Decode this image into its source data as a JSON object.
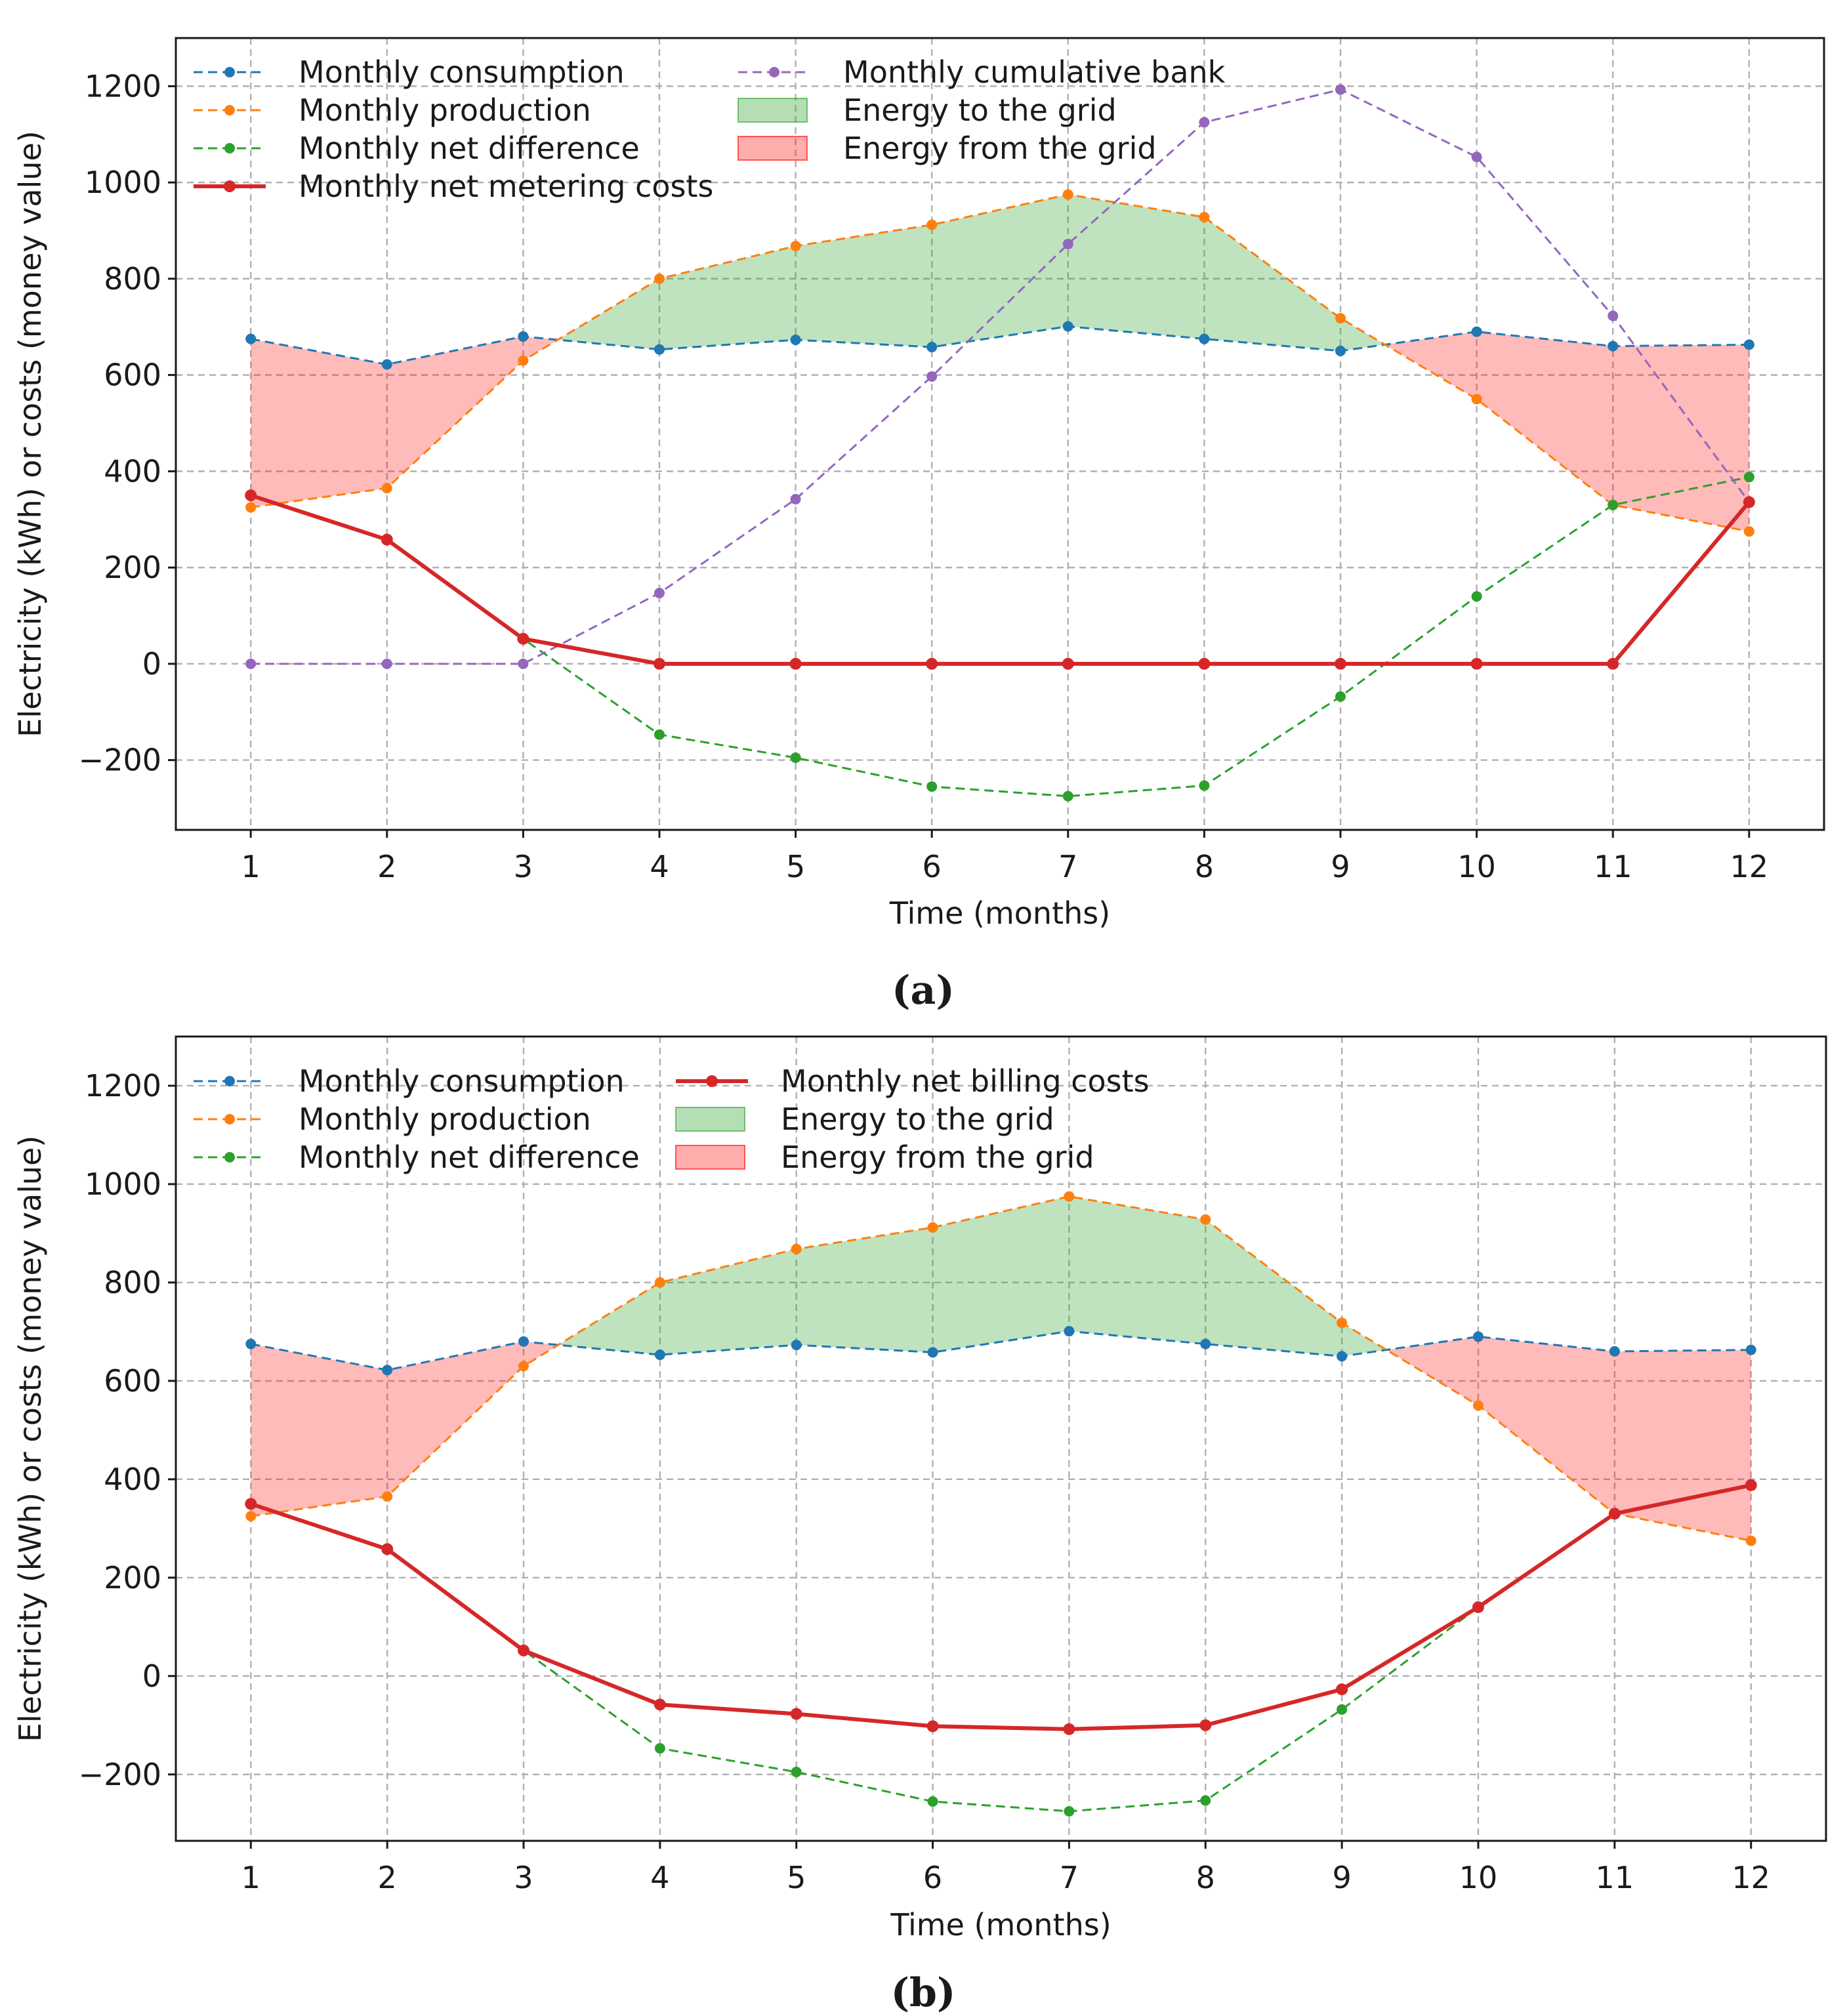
{
  "chart_data": [
    {
      "type": "line",
      "caption": "(a)",
      "xlabel": "Time (months)",
      "ylabel": "Electricity (kWh) or costs (money value)",
      "xlim": [
        0.45,
        12.55
      ],
      "ylim": [
        -345,
        1300
      ],
      "x": [
        1,
        2,
        3,
        4,
        5,
        6,
        7,
        8,
        9,
        10,
        11,
        12
      ],
      "x_ticks": [
        "1",
        "2",
        "3",
        "4",
        "5",
        "6",
        "7",
        "8",
        "9",
        "10",
        "11",
        "12"
      ],
      "y_ticks": [
        -200,
        0,
        200,
        400,
        600,
        800,
        1000,
        1200
      ],
      "y_tick_labels": [
        "−200",
        "0",
        "200",
        "400",
        "600",
        "800",
        "1000",
        "1200"
      ],
      "grid": true,
      "legend_position": "top-left",
      "series": [
        {
          "name": "Monthly consumption",
          "key": "consumption",
          "color": "#1f77b4",
          "style": "dashed-marker",
          "values": [
            675,
            622,
            680,
            653,
            673,
            658,
            701,
            675,
            650,
            690,
            660,
            663
          ]
        },
        {
          "name": "Monthly production",
          "key": "production",
          "color": "#ff7f0e",
          "style": "dashed-marker",
          "values": [
            325,
            365,
            630,
            800,
            868,
            912,
            975,
            928,
            718,
            550,
            330,
            275
          ]
        },
        {
          "name": "Monthly net difference",
          "key": "net",
          "color": "#2ca02c",
          "style": "dashed-marker",
          "values": [
            350,
            258,
            52,
            -147,
            -195,
            -255,
            -275,
            -253,
            -68,
            140,
            330,
            388
          ]
        },
        {
          "name": "Monthly net metering costs",
          "key": "cost",
          "color": "#d62728",
          "style": "solid-marker",
          "values": [
            350,
            258,
            52,
            0,
            0,
            0,
            0,
            0,
            0,
            0,
            0,
            336
          ]
        },
        {
          "name": "Monthly cumulative bank",
          "key": "bank",
          "color": "#9467bd",
          "style": "dashed-marker",
          "values": [
            0,
            0,
            0,
            147,
            342,
            597,
            872,
            1125,
            1193,
            1053,
            723,
            336
          ]
        }
      ],
      "fills": [
        {
          "name": "Energy to the grid",
          "color": "#2ca02c",
          "opacity": 0.3,
          "condition": "production > consumption"
        },
        {
          "name": "Energy from the grid",
          "color": "#ff0000",
          "opacity": 0.27,
          "condition": "consumption > production"
        }
      ]
    },
    {
      "type": "line",
      "caption": "(b)",
      "xlabel": "Time (months)",
      "ylabel": "Electricity (kWh) or costs (money value)",
      "xlim": [
        0.45,
        12.55
      ],
      "ylim": [
        -335,
        1300
      ],
      "x": [
        1,
        2,
        3,
        4,
        5,
        6,
        7,
        8,
        9,
        10,
        11,
        12
      ],
      "x_ticks": [
        "1",
        "2",
        "3",
        "4",
        "5",
        "6",
        "7",
        "8",
        "9",
        "10",
        "11",
        "12"
      ],
      "y_ticks": [
        -200,
        0,
        200,
        400,
        600,
        800,
        1000,
        1200
      ],
      "y_tick_labels": [
        "−200",
        "0",
        "200",
        "400",
        "600",
        "800",
        "1000",
        "1200"
      ],
      "grid": true,
      "legend_position": "top-left",
      "series": [
        {
          "name": "Monthly consumption",
          "key": "consumption",
          "color": "#1f77b4",
          "style": "dashed-marker",
          "values": [
            675,
            622,
            680,
            653,
            673,
            658,
            701,
            675,
            650,
            690,
            660,
            663
          ]
        },
        {
          "name": "Monthly production",
          "key": "production",
          "color": "#ff7f0e",
          "style": "dashed-marker",
          "values": [
            325,
            365,
            630,
            800,
            868,
            912,
            975,
            928,
            718,
            550,
            330,
            275
          ]
        },
        {
          "name": "Monthly net difference",
          "key": "net",
          "color": "#2ca02c",
          "style": "dashed-marker",
          "values": [
            350,
            258,
            52,
            -147,
            -195,
            -255,
            -275,
            -253,
            -68,
            140,
            330,
            388
          ]
        },
        {
          "name": "Monthly net billing costs",
          "key": "cost",
          "color": "#d62728",
          "style": "solid-marker",
          "values": [
            350,
            258,
            52,
            -58,
            -77,
            -102,
            -108,
            -100,
            -27,
            140,
            330,
            388
          ]
        }
      ],
      "fills": [
        {
          "name": "Energy to the grid",
          "color": "#2ca02c",
          "opacity": 0.3,
          "condition": "production > consumption"
        },
        {
          "name": "Energy from the grid",
          "color": "#ff0000",
          "opacity": 0.27,
          "condition": "consumption > production"
        }
      ]
    }
  ]
}
